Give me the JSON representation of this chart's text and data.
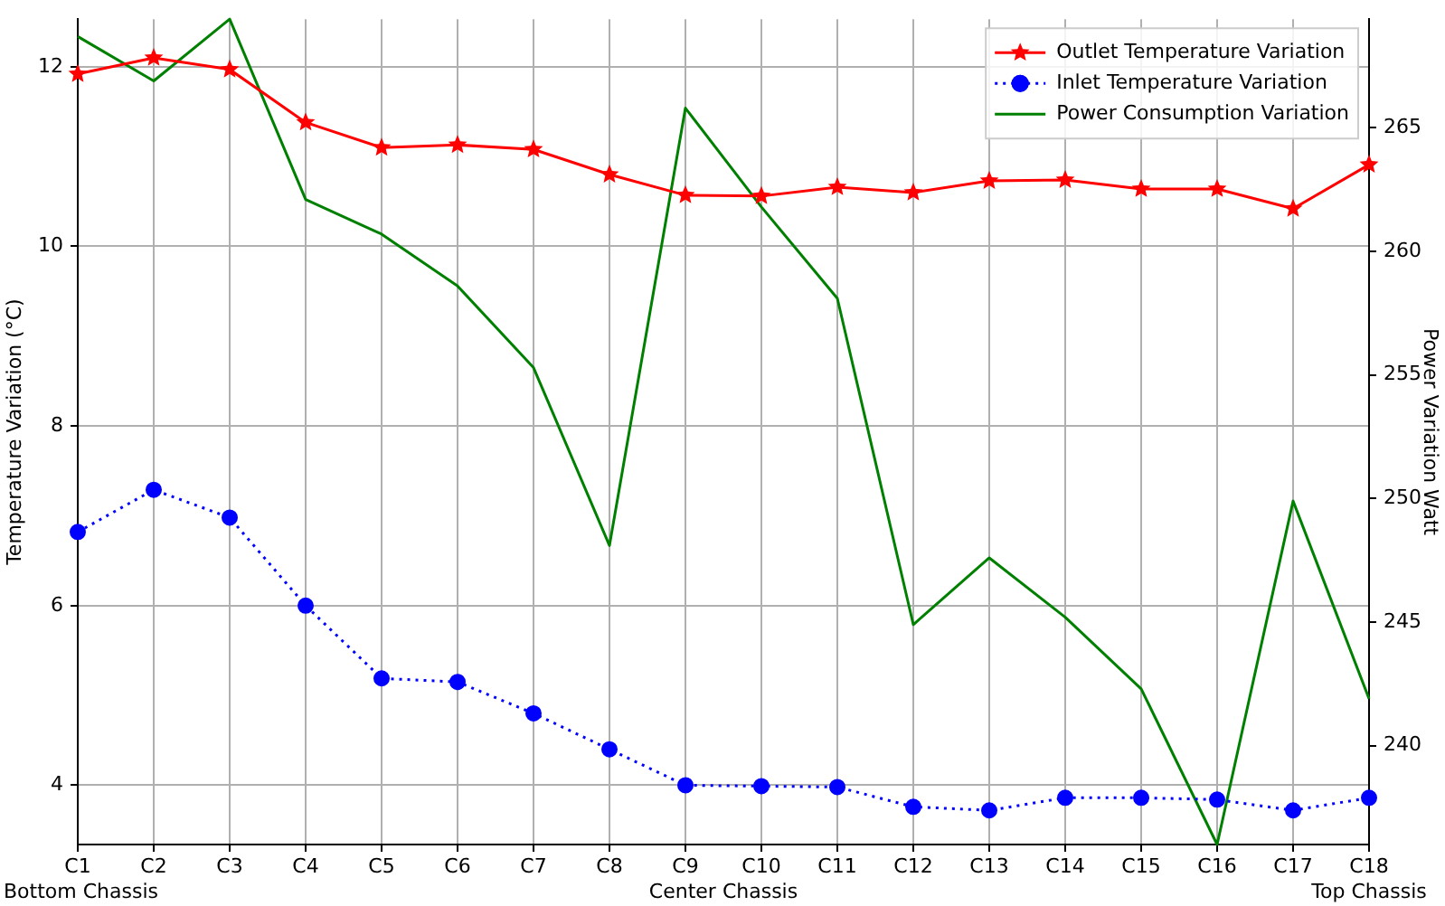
{
  "chart_data": {
    "type": "line",
    "ylabel": "Temperature Variation (°C)",
    "y2label": "Power Variation Watt",
    "categories": [
      "C1",
      "C2",
      "C3",
      "C4",
      "C5",
      "C6",
      "C7",
      "C8",
      "C9",
      "C10",
      "C11",
      "C12",
      "C13",
      "C14",
      "C15",
      "C16",
      "C17",
      "C18"
    ],
    "series": [
      {
        "name": "Outlet Temperature Variation",
        "color": "#ff0000",
        "marker": "star",
        "line_style": "solid",
        "values": [
          11.92,
          12.1,
          11.97,
          11.38,
          11.1,
          11.13,
          11.08,
          10.8,
          10.57,
          10.56,
          10.66,
          10.6,
          10.73,
          10.74,
          10.64,
          10.64,
          10.42,
          10.91
        ]
      },
      {
        "name": "Inlet Temperature Variation",
        "color": "#0000ff",
        "marker": "circle",
        "line_style": "dotted",
        "values": [
          6.82,
          7.29,
          6.98,
          6.0,
          5.19,
          5.15,
          4.8,
          4.4,
          4.0,
          3.99,
          3.98,
          3.76,
          3.72,
          3.86,
          3.86,
          3.84,
          3.72,
          3.86
        ]
      },
      {
        "name": "Power Consumption Variation",
        "color": "#008000",
        "marker": "none",
        "line_style": "solid",
        "axis": "y2",
        "values": [
          268.7,
          266.9,
          269.4,
          262.1,
          260.7,
          258.6,
          255.3,
          248.1,
          265.8,
          261.8,
          258.1,
          244.9,
          247.6,
          245.2,
          242.3,
          236.0,
          249.9,
          241.9
        ]
      }
    ],
    "ylim": [
      3.34,
      12.53
    ],
    "yticks": [
      4,
      6,
      8,
      10,
      12
    ],
    "y2lim": [
      236.0,
      269.4
    ],
    "y2ticks": [
      240,
      245,
      250,
      255,
      260,
      265
    ],
    "grid": true,
    "legend": "top right",
    "annotations": [
      "Bottom Chassis",
      "Center Chassis",
      "Top Chassis"
    ]
  }
}
